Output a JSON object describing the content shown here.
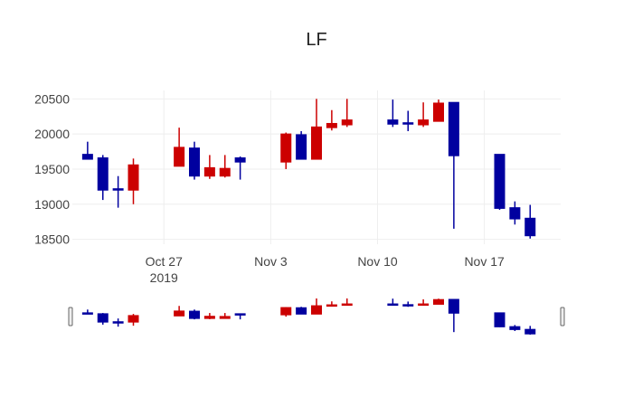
{
  "chart_data": {
    "type": "candlestick",
    "title": "LF",
    "x_tick_labels": [
      {
        "date": "2019-10-27",
        "label": "Oct 27",
        "sublabel": "2019"
      },
      {
        "date": "2019-11-03",
        "label": "Nov 3",
        "sublabel": ""
      },
      {
        "date": "2019-11-10",
        "label": "Nov 10",
        "sublabel": ""
      },
      {
        "date": "2019-11-17",
        "label": "Nov 17",
        "sublabel": ""
      }
    ],
    "y_ticks": [
      18500,
      19000,
      19500,
      20000,
      20500
    ],
    "y_tick_labels": [
      "18500",
      "19000",
      "19500",
      "20000",
      "20500"
    ],
    "xlim": [
      "2019-10-21",
      "2019-11-22"
    ],
    "ylim": [
      18430,
      20620
    ],
    "increasing_color": "#00009f",
    "decreasing_color": "#cc0000",
    "rangeslider": true,
    "candles": [
      {
        "date": "2019-10-22",
        "open": 19640,
        "high": 19890,
        "low": 19640,
        "close": 19710
      },
      {
        "date": "2019-10-23",
        "open": 19200,
        "high": 19700,
        "low": 19060,
        "close": 19660
      },
      {
        "date": "2019-10-24",
        "open": 19200,
        "high": 19400,
        "low": 18950,
        "close": 19220
      },
      {
        "date": "2019-10-25",
        "open": 19560,
        "high": 19650,
        "low": 19000,
        "close": 19200
      },
      {
        "date": "2019-10-28",
        "open": 19810,
        "high": 20090,
        "low": 19540,
        "close": 19540
      },
      {
        "date": "2019-10-29",
        "open": 19400,
        "high": 19890,
        "low": 19350,
        "close": 19800
      },
      {
        "date": "2019-10-30",
        "open": 19520,
        "high": 19700,
        "low": 19360,
        "close": 19400
      },
      {
        "date": "2019-10-31",
        "open": 19510,
        "high": 19700,
        "low": 19380,
        "close": 19400
      },
      {
        "date": "2019-11-01",
        "open": 19600,
        "high": 19680,
        "low": 19350,
        "close": 19660
      },
      {
        "date": "2019-11-04",
        "open": 20000,
        "high": 20020,
        "low": 19500,
        "close": 19600
      },
      {
        "date": "2019-11-05",
        "open": 19640,
        "high": 20040,
        "low": 19640,
        "close": 19990
      },
      {
        "date": "2019-11-06",
        "open": 20100,
        "high": 20500,
        "low": 19640,
        "close": 19640
      },
      {
        "date": "2019-11-07",
        "open": 20150,
        "high": 20340,
        "low": 20050,
        "close": 20090
      },
      {
        "date": "2019-11-08",
        "open": 20200,
        "high": 20500,
        "low": 20100,
        "close": 20130
      },
      {
        "date": "2019-11-11",
        "open": 20140,
        "high": 20490,
        "low": 20100,
        "close": 20200
      },
      {
        "date": "2019-11-12",
        "open": 20140,
        "high": 20330,
        "low": 20040,
        "close": 20160
      },
      {
        "date": "2019-11-13",
        "open": 20200,
        "high": 20450,
        "low": 20100,
        "close": 20130
      },
      {
        "date": "2019-11-14",
        "open": 20440,
        "high": 20490,
        "low": 20180,
        "close": 20180
      },
      {
        "date": "2019-11-15",
        "open": 19690,
        "high": 20450,
        "low": 18650,
        "close": 20450
      },
      {
        "date": "2019-11-18",
        "open": 18940,
        "high": 19710,
        "low": 18920,
        "close": 19710
      },
      {
        "date": "2019-11-19",
        "open": 18790,
        "high": 19040,
        "low": 18710,
        "close": 18950
      },
      {
        "date": "2019-11-20",
        "open": 18550,
        "high": 18990,
        "low": 18510,
        "close": 18800
      }
    ]
  }
}
